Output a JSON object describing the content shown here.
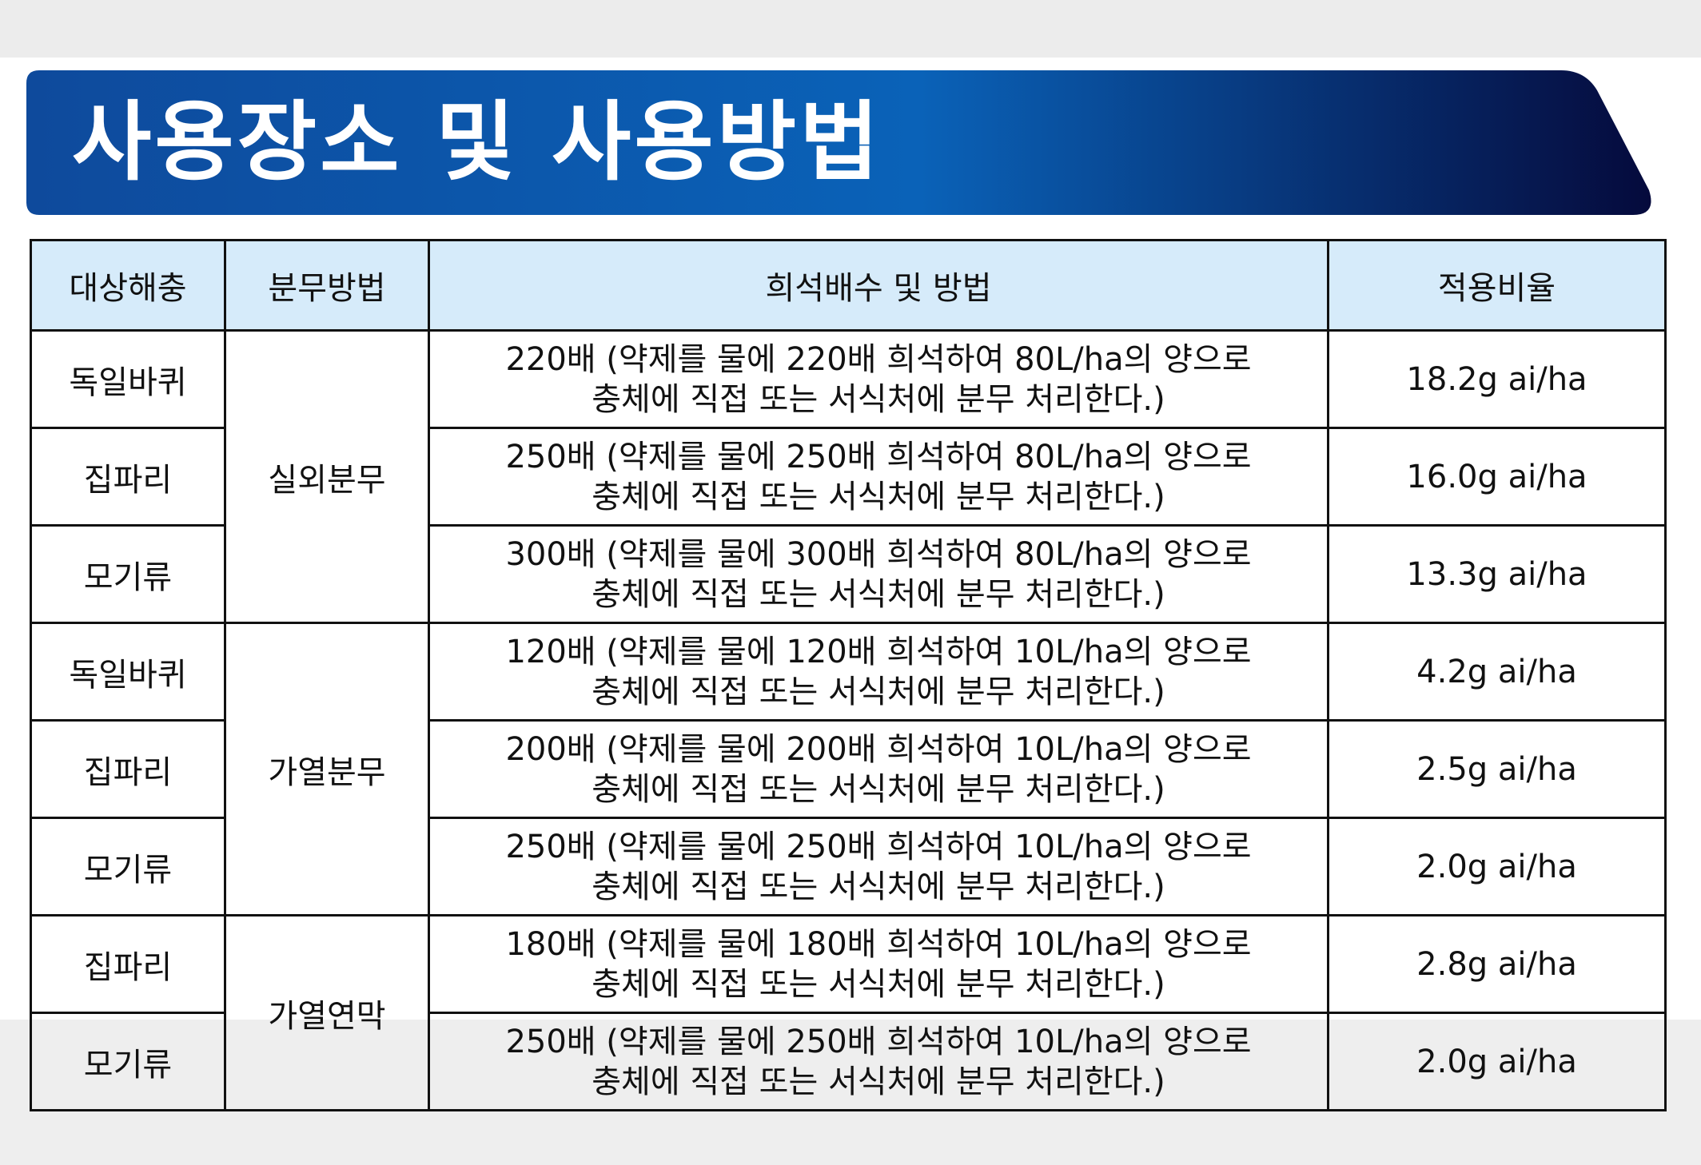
{
  "header": {
    "title": "사용장소 및 사용방법"
  },
  "table": {
    "headers": [
      "대상해충",
      "분무방법",
      "희석배수 및 방법",
      "적용비율"
    ],
    "groups": [
      {
        "method": "실외분무",
        "rows": [
          {
            "pest": "독일바퀴",
            "dilution": [
              "220배 (약제를 물에 220배 희석하여 80L/ha의 양으로",
              "충체에 직접 또는 서식처에 분무 처리한다.)"
            ],
            "ratio": "18.2g ai/ha"
          },
          {
            "pest": "집파리",
            "dilution": [
              "250배 (약제를 물에 250배 희석하여 80L/ha의 양으로",
              "충체에 직접 또는 서식처에 분무 처리한다.)"
            ],
            "ratio": "16.0g ai/ha"
          },
          {
            "pest": "모기류",
            "dilution": [
              "300배 (약제를 물에 300배 희석하여 80L/ha의 양으로",
              "충체에 직접 또는 서식처에 분무 처리한다.)"
            ],
            "ratio": "13.3g ai/ha"
          }
        ]
      },
      {
        "method": "가열분무",
        "rows": [
          {
            "pest": "독일바퀴",
            "dilution": [
              "120배 (약제를 물에 120배 희석하여 10L/ha의 양으로",
              "충체에 직접 또는 서식처에 분무 처리한다.)"
            ],
            "ratio": "4.2g ai/ha"
          },
          {
            "pest": "집파리",
            "dilution": [
              "200배 (약제를 물에 200배 희석하여 10L/ha의 양으로",
              "충체에 직접 또는 서식처에 분무 처리한다.)"
            ],
            "ratio": "2.5g ai/ha"
          },
          {
            "pest": "모기류",
            "dilution": [
              "250배 (약제를 물에 250배 희석하여 10L/ha의 양으로",
              "충체에 직접 또는 서식처에 분무 처리한다.)"
            ],
            "ratio": "2.0g ai/ha"
          }
        ]
      },
      {
        "method": "가열연막",
        "rows": [
          {
            "pest": "집파리",
            "dilution": [
              "180배 (약제를 물에 180배 희석하여 10L/ha의 양으로",
              "충체에 직접 또는 서식처에 분무 처리한다.)"
            ],
            "ratio": "2.8g ai/ha"
          },
          {
            "pest": "모기류",
            "dilution": [
              "250배 (약제를 물에 250배 희석하여 10L/ha의 양으로",
              "충체에 직접 또는 서식처에 분무 처리한다.)"
            ],
            "ratio": "2.0g ai/ha"
          }
        ]
      }
    ]
  }
}
